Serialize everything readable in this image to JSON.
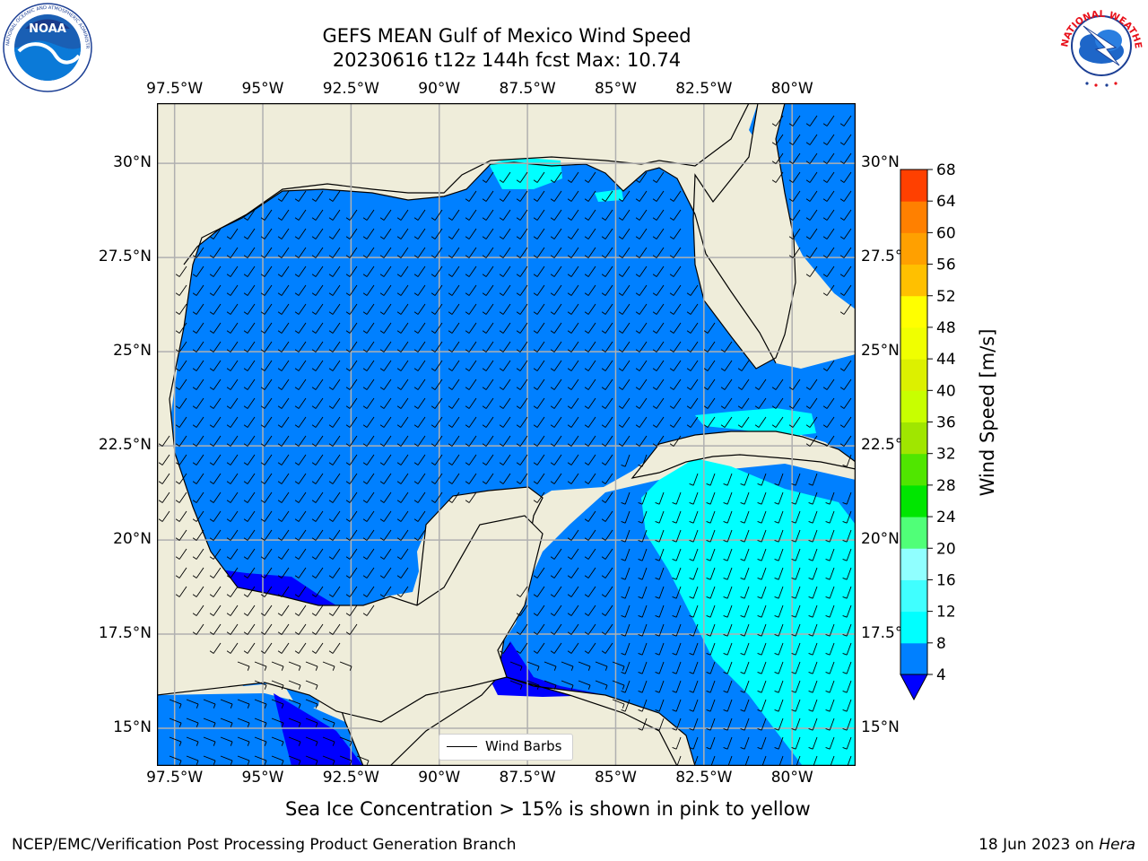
{
  "header": {
    "title_line1": "GEFS MEAN Gulf of Mexico Wind Speed",
    "title_line2": "20230616 t12z 144h fcst   Max: 10.74"
  },
  "logos": {
    "left": {
      "icon": "noaa-logo",
      "text": "NOAA",
      "ring_text": "NATIONAL OCEANIC AND ATMOSPHERIC ADMINISTRATION · U.S. DEPARTMENT OF COMMERCE"
    },
    "right": {
      "icon": "nws-logo",
      "ring_text": "NATIONAL WEATHER SERVICE"
    }
  },
  "map": {
    "lon_ticks": [
      "97.5°W",
      "95°W",
      "92.5°W",
      "90°W",
      "87.5°W",
      "85°W",
      "82.5°W",
      "80°W"
    ],
    "lon_values": [
      -97.5,
      -95,
      -92.5,
      -90,
      -87.5,
      -85,
      -82.5,
      -80
    ],
    "lat_ticks": [
      "30°N",
      "27.5°N",
      "25°N",
      "22.5°N",
      "20°N",
      "17.5°N",
      "15°N"
    ],
    "lat_values": [
      30,
      27.5,
      25,
      22.5,
      20,
      17.5,
      15
    ],
    "lon_range": [
      -98,
      -78.2
    ],
    "lat_range": [
      14,
      31.6
    ],
    "land_color": "#efedda",
    "grid": true,
    "legend": {
      "label": "Wind Barbs",
      "placement": "bottom-center"
    }
  },
  "colorbar": {
    "label": "Wind Speed [m/s]",
    "ticks": [
      "68",
      "64",
      "60",
      "56",
      "52",
      "48",
      "44",
      "40",
      "36",
      "32",
      "28",
      "24",
      "20",
      "16",
      "12",
      "8",
      "4"
    ],
    "extend": "min",
    "under_color": "#0000ff",
    "colors_low_to_high": [
      "#0080ff",
      "#00ffff",
      "#40ffff",
      "#90ffff",
      "#50ff78",
      "#00e600",
      "#50e600",
      "#a0e600",
      "#c8ff00",
      "#dcf000",
      "#f0ff00",
      "#ffff00",
      "#ffc000",
      "#ffa000",
      "#ff8000",
      "#ff4000",
      "#ff0000"
    ]
  },
  "note": "Sea Ice Concentration > 15% is shown in pink to yellow",
  "footer": {
    "left": "NCEP/EMC/Verification Post Processing Product Generation Branch",
    "date": "18 Jun 2023 on",
    "machine": "Hera"
  }
}
